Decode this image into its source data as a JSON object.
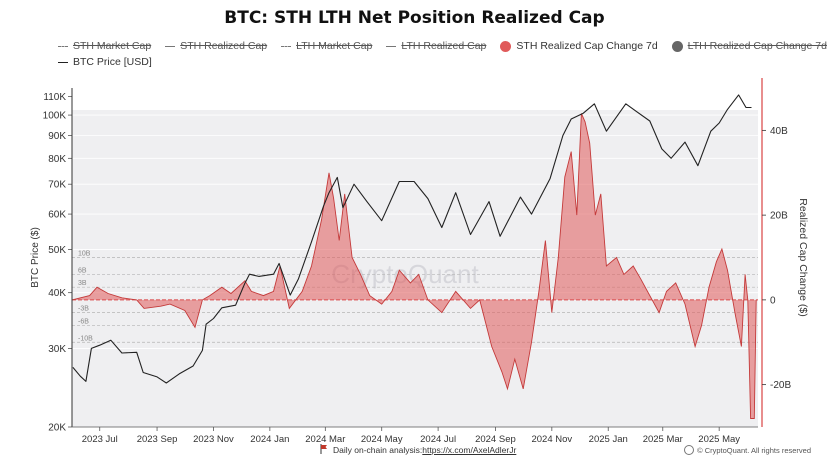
{
  "page": {
    "title": "BTC: STH LTH Net Position Realized Cap",
    "footer_prefix": "Daily on-chain analysis: ",
    "footer_link": "https://x.com/AxelAdlerJr",
    "copyright": "© CryptoQuant. All rights reserved",
    "watermark": "CryptoQuant"
  },
  "legend": [
    {
      "label": "STH Market Cap",
      "style": "dash",
      "struck": true,
      "color": "#888888"
    },
    {
      "label": "STH Realized Cap",
      "style": "line",
      "struck": true,
      "color": "#888888"
    },
    {
      "label": "LTH Market Cap",
      "style": "dash",
      "struck": true,
      "color": "#888888"
    },
    {
      "label": "LTH Realized Cap",
      "style": "line",
      "struck": true,
      "color": "#888888"
    },
    {
      "label": "STH Realized Cap Change 7d",
      "style": "dot",
      "struck": false,
      "color": "#e05a5a"
    },
    {
      "label": "LTH Realized Cap Change 7d",
      "style": "dot",
      "struck": true,
      "color": "#666666"
    },
    {
      "label": "BTC Price [USD]",
      "style": "solid",
      "struck": false,
      "color": "#222222"
    }
  ],
  "chart_data": {
    "type": "line",
    "title": "BTC: STH LTH Net Position Realized Cap",
    "x_ticks": [
      "2023 Jul",
      "2023 Sep",
      "2023 Nov",
      "2024 Jan",
      "2024 Mar",
      "2024 May",
      "2024 Jul",
      "2024 Sep",
      "2024 Nov",
      "2025 Jan",
      "2025 Mar",
      "2025 May"
    ],
    "x_tick_dates": [
      "2023-07-01",
      "2023-09-01",
      "2023-11-01",
      "2024-01-01",
      "2024-03-01",
      "2024-05-01",
      "2024-07-01",
      "2024-09-01",
      "2024-11-01",
      "2025-01-01",
      "2025-03-01",
      "2025-05-01"
    ],
    "x_range": [
      "2023-06-01",
      "2025-06-12"
    ],
    "left_axis": {
      "label": "BTC Price ($)",
      "scale": "log",
      "range": [
        20000,
        115000
      ],
      "ticks": [
        20000,
        30000,
        40000,
        50000,
        60000,
        70000,
        80000,
        90000,
        100000,
        110000
      ],
      "tick_labels": [
        "20K",
        "30K",
        "40K",
        "50K",
        "60K",
        "70K",
        "80K",
        "90K",
        "100K",
        "110K"
      ]
    },
    "right_axis": {
      "label": "Realized Cap Change ($)",
      "scale": "linear",
      "range": [
        -30,
        50
      ],
      "ticks": [
        -20,
        0,
        20,
        40
      ],
      "tick_labels": [
        "-20B",
        "0",
        "20B",
        "40B"
      ]
    },
    "reference_lines": [
      {
        "value": 10,
        "label": "10B"
      },
      {
        "value": 6,
        "label": "6B"
      },
      {
        "value": 3,
        "label": "3B"
      },
      {
        "value": -3,
        "label": "-3B"
      },
      {
        "value": -6,
        "label": "-6B"
      },
      {
        "value": -10,
        "label": "-10B"
      }
    ],
    "series": [
      {
        "name": "BTC Price [USD]",
        "axis": "left",
        "color": "#222222",
        "points": [
          [
            "2023-06-02",
            27200
          ],
          [
            "2023-06-10",
            26000
          ],
          [
            "2023-06-16",
            25300
          ],
          [
            "2023-06-22",
            30000
          ],
          [
            "2023-07-01",
            30500
          ],
          [
            "2023-07-13",
            31300
          ],
          [
            "2023-07-25",
            29300
          ],
          [
            "2023-08-10",
            29400
          ],
          [
            "2023-08-17",
            26500
          ],
          [
            "2023-09-01",
            25900
          ],
          [
            "2023-09-11",
            25100
          ],
          [
            "2023-09-25",
            26300
          ],
          [
            "2023-10-10",
            27400
          ],
          [
            "2023-10-20",
            29700
          ],
          [
            "2023-10-24",
            34000
          ],
          [
            "2023-11-01",
            35000
          ],
          [
            "2023-11-10",
            37000
          ],
          [
            "2023-11-25",
            37500
          ],
          [
            "2023-12-05",
            42000
          ],
          [
            "2023-12-10",
            44000
          ],
          [
            "2023-12-20",
            43500
          ],
          [
            "2024-01-05",
            44000
          ],
          [
            "2024-01-11",
            46500
          ],
          [
            "2024-01-23",
            39500
          ],
          [
            "2024-02-01",
            43000
          ],
          [
            "2024-02-15",
            52000
          ],
          [
            "2024-02-28",
            62500
          ],
          [
            "2024-03-05",
            67000
          ],
          [
            "2024-03-14",
            72500
          ],
          [
            "2024-03-20",
            62000
          ],
          [
            "2024-04-01",
            70000
          ],
          [
            "2024-04-15",
            64000
          ],
          [
            "2024-05-01",
            58000
          ],
          [
            "2024-05-20",
            71000
          ],
          [
            "2024-06-05",
            71000
          ],
          [
            "2024-06-20",
            65000
          ],
          [
            "2024-07-05",
            56000
          ],
          [
            "2024-07-20",
            67000
          ],
          [
            "2024-08-05",
            54000
          ],
          [
            "2024-08-25",
            64000
          ],
          [
            "2024-09-06",
            53500
          ],
          [
            "2024-09-28",
            65500
          ],
          [
            "2024-10-10",
            60000
          ],
          [
            "2024-10-30",
            72000
          ],
          [
            "2024-11-13",
            90000
          ],
          [
            "2024-11-22",
            98000
          ],
          [
            "2024-12-05",
            101000
          ],
          [
            "2024-12-17",
            106000
          ],
          [
            "2024-12-30",
            92000
          ],
          [
            "2025-01-20",
            106000
          ],
          [
            "2025-01-31",
            102000
          ],
          [
            "2025-02-15",
            97000
          ],
          [
            "2025-02-28",
            84000
          ],
          [
            "2025-03-10",
            80000
          ],
          [
            "2025-03-25",
            87000
          ],
          [
            "2025-04-08",
            77000
          ],
          [
            "2025-04-22",
            92000
          ],
          [
            "2025-05-01",
            96000
          ],
          [
            "2025-05-10",
            103000
          ],
          [
            "2025-05-22",
            111000
          ],
          [
            "2025-05-30",
            104000
          ],
          [
            "2025-06-05",
            104000
          ]
        ]
      },
      {
        "name": "STH Realized Cap Change 7d",
        "axis": "right",
        "color": "#e05a5a",
        "points": [
          [
            "2023-06-01",
            0
          ],
          [
            "2023-06-20",
            1
          ],
          [
            "2023-06-28",
            3
          ],
          [
            "2023-07-10",
            1.5
          ],
          [
            "2023-07-25",
            0.5
          ],
          [
            "2023-08-10",
            0
          ],
          [
            "2023-08-18",
            -2
          ],
          [
            "2023-09-05",
            -1.5
          ],
          [
            "2023-09-15",
            -1
          ],
          [
            "2023-10-01",
            -2.5
          ],
          [
            "2023-10-12",
            -6.5
          ],
          [
            "2023-10-20",
            0
          ],
          [
            "2023-10-28",
            1
          ],
          [
            "2023-11-10",
            3
          ],
          [
            "2023-11-20",
            1.5
          ],
          [
            "2023-12-05",
            4.5
          ],
          [
            "2023-12-12",
            2
          ],
          [
            "2023-12-25",
            1
          ],
          [
            "2024-01-05",
            2
          ],
          [
            "2024-01-12",
            8
          ],
          [
            "2024-01-22",
            -2
          ],
          [
            "2024-02-05",
            2
          ],
          [
            "2024-02-15",
            8
          ],
          [
            "2024-02-26",
            19
          ],
          [
            "2024-03-05",
            30
          ],
          [
            "2024-03-10",
            24
          ],
          [
            "2024-03-16",
            14
          ],
          [
            "2024-03-22",
            25
          ],
          [
            "2024-03-30",
            10
          ],
          [
            "2024-04-08",
            6
          ],
          [
            "2024-04-18",
            1
          ],
          [
            "2024-05-01",
            -1
          ],
          [
            "2024-05-12",
            2
          ],
          [
            "2024-05-20",
            7
          ],
          [
            "2024-06-01",
            4
          ],
          [
            "2024-06-10",
            6
          ],
          [
            "2024-06-20",
            0
          ],
          [
            "2024-07-05",
            -3
          ],
          [
            "2024-07-20",
            2
          ],
          [
            "2024-08-05",
            -2
          ],
          [
            "2024-08-15",
            0
          ],
          [
            "2024-08-28",
            -11
          ],
          [
            "2024-09-08",
            -17
          ],
          [
            "2024-09-14",
            -21
          ],
          [
            "2024-09-22",
            -14
          ],
          [
            "2024-10-01",
            -21
          ],
          [
            "2024-10-10",
            -10
          ],
          [
            "2024-10-18",
            2
          ],
          [
            "2024-10-25",
            14
          ],
          [
            "2024-11-01",
            -3
          ],
          [
            "2024-11-08",
            10
          ],
          [
            "2024-11-15",
            29
          ],
          [
            "2024-11-22",
            35
          ],
          [
            "2024-11-28",
            20
          ],
          [
            "2024-12-03",
            44
          ],
          [
            "2024-12-07",
            42
          ],
          [
            "2024-12-12",
            37
          ],
          [
            "2024-12-18",
            20
          ],
          [
            "2024-12-24",
            25
          ],
          [
            "2024-12-30",
            8
          ],
          [
            "2025-01-10",
            10
          ],
          [
            "2025-01-18",
            6
          ],
          [
            "2025-01-28",
            8
          ],
          [
            "2025-02-05",
            5
          ],
          [
            "2025-02-15",
            1
          ],
          [
            "2025-02-25",
            -3
          ],
          [
            "2025-03-05",
            2
          ],
          [
            "2025-03-15",
            4
          ],
          [
            "2025-03-25",
            -1
          ],
          [
            "2025-04-05",
            -11
          ],
          [
            "2025-04-12",
            -6
          ],
          [
            "2025-04-20",
            3
          ],
          [
            "2025-04-28",
            9
          ],
          [
            "2025-05-04",
            12
          ],
          [
            "2025-05-10",
            7
          ],
          [
            "2025-05-18",
            -3
          ],
          [
            "2025-05-25",
            -11
          ],
          [
            "2025-05-29",
            6
          ],
          [
            "2025-06-01",
            0
          ],
          [
            "2025-06-04",
            -28
          ],
          [
            "2025-06-08",
            -28
          ],
          [
            "2025-06-10",
            0
          ]
        ]
      }
    ],
    "grid": true,
    "legend_position": "top"
  }
}
